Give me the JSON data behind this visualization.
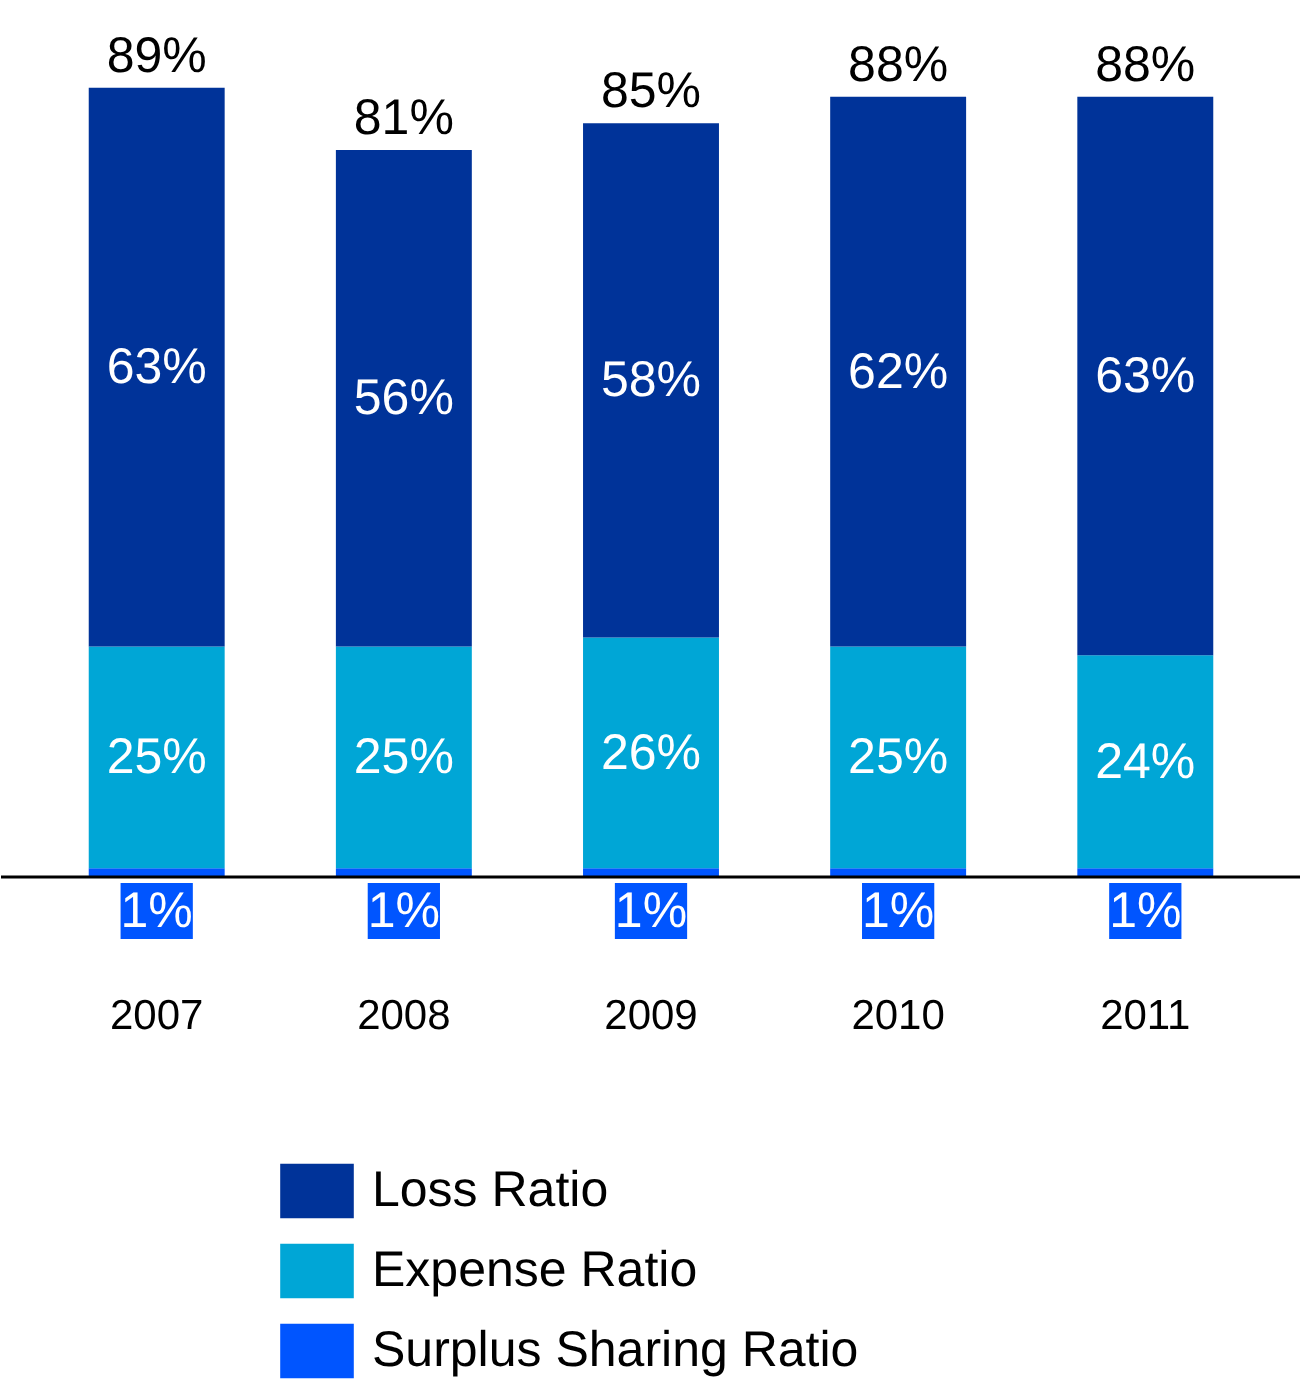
{
  "chart_data": {
    "type": "bar",
    "stacked": true,
    "categories": [
      "2007",
      "2008",
      "2009",
      "2010",
      "2011"
    ],
    "series": [
      {
        "name": "Surplus Sharing Ratio",
        "color": "#0055ff",
        "values": [
          1,
          1,
          1,
          1,
          1
        ],
        "value_labels": [
          "1%",
          "1%",
          "1%",
          "1%",
          "1%"
        ]
      },
      {
        "name": "Expense Ratio",
        "color": "#00a6d6",
        "values": [
          25,
          25,
          26,
          25,
          24
        ],
        "value_labels": [
          "25%",
          "25%",
          "26%",
          "25%",
          "24%"
        ]
      },
      {
        "name": "Loss Ratio",
        "color": "#003399",
        "values": [
          63,
          56,
          58,
          62,
          63
        ],
        "value_labels": [
          "63%",
          "56%",
          "58%",
          "62%",
          "63%"
        ]
      }
    ],
    "totals": [
      "89%",
      "81%",
      "85%",
      "88%",
      "88%"
    ],
    "grid": false,
    "legend": "bottom"
  }
}
